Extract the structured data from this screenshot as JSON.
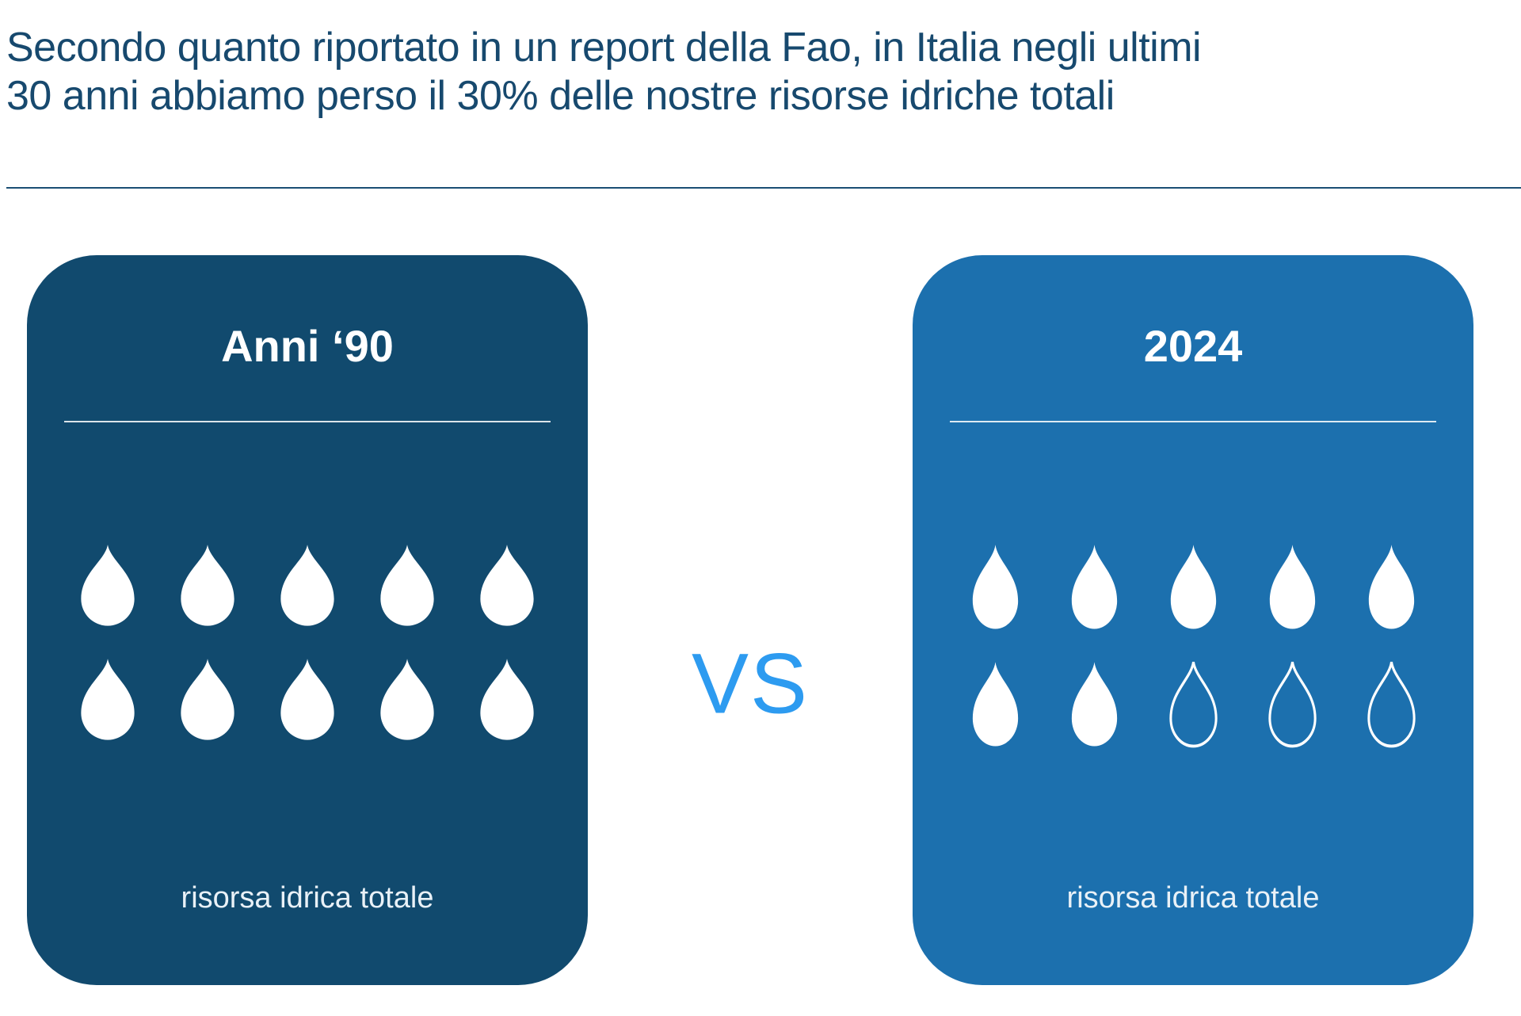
{
  "header": {
    "line1": "Secondo quanto riportato in un report della Fao, in Italia negli ultimi",
    "line2": "30 anni abbiamo perso il 30% delle nostre risorse idriche totali"
  },
  "comparison": {
    "vs_label": "VS",
    "cards": [
      {
        "title": "Anni ‘90",
        "label": "risorsa idrica totale"
      },
      {
        "title": "2024",
        "label": "risorsa idrica totale"
      }
    ]
  },
  "chart_data": {
    "type": "bar",
    "variant": "pictogram",
    "title": "Secondo quanto riportato in un report della Fao, in Italia negli ultimi 30 anni abbiamo perso il 30% delle nostre risorse idriche totali",
    "categories": [
      "Anni ‘90",
      "2024"
    ],
    "values": [
      10,
      7
    ],
    "max_per_category": 10,
    "icons_per_row": 5,
    "icon": "water-drop",
    "icon_meaning": "each drop = 10% of total water resource; empty outlined drops = lost resource",
    "category_caption": "risorsa idrica totale",
    "legend_position": "none",
    "grid": false
  },
  "colors": {
    "headline-color": "#17496e",
    "rule-color": "#1b4f74",
    "card-left-bg": "#114a6e",
    "card-right-bg": "#1c70ae",
    "vs-color": "#2d9bf0",
    "drop-fill": "#ffffff"
  }
}
